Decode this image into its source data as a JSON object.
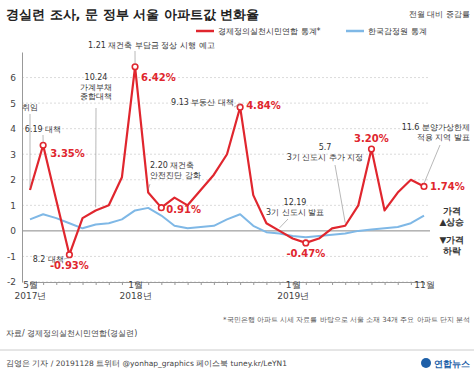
{
  "chart_data": {
    "type": "line",
    "title": "경실련 조사, 문 정부 서울 아파트값 변화율",
    "subtitle": "전월 대비 증감률",
    "categories": [
      "5월\n2017년",
      null,
      null,
      null,
      null,
      null,
      null,
      null,
      "1월\n2018년",
      null,
      null,
      null,
      null,
      null,
      null,
      null,
      null,
      null,
      null,
      null,
      "1월\n2019년",
      null,
      null,
      null,
      null,
      null,
      null,
      null,
      null,
      null,
      "11월"
    ],
    "series": [
      {
        "name": "경제정의실천시민연합 통계*",
        "color": "#e0262e",
        "marker": "circle",
        "data_labels": true,
        "values": [
          1.6,
          3.35,
          1.2,
          -0.93,
          0.5,
          0.8,
          1.0,
          2.1,
          6.42,
          1.5,
          0.91,
          1.3,
          1.0,
          1.6,
          2.2,
          3.0,
          4.84,
          1.4,
          0.3,
          0.0,
          -0.3,
          -0.47,
          -0.3,
          0.1,
          0.2,
          1.0,
          3.2,
          0.8,
          1.5,
          2.0,
          1.74
        ],
        "value_labels": [
          null,
          "3.35%",
          null,
          "-0.93%",
          null,
          null,
          null,
          null,
          "6.42%",
          null,
          "0.91%",
          null,
          null,
          null,
          null,
          null,
          "4.84%",
          null,
          null,
          null,
          null,
          "-0.47%",
          null,
          null,
          null,
          null,
          "3.20%",
          null,
          null,
          null,
          "1.74%"
        ]
      },
      {
        "name": "한국감정원 통계",
        "color": "#7fb8e6",
        "values": [
          0.45,
          0.65,
          0.5,
          0.3,
          0.1,
          0.25,
          0.3,
          0.45,
          0.8,
          0.9,
          0.6,
          0.2,
          0.1,
          0.15,
          0.2,
          0.45,
          0.65,
          0.2,
          -0.05,
          -0.1,
          -0.2,
          -0.25,
          -0.2,
          -0.15,
          -0.1,
          0.0,
          0.05,
          0.1,
          0.15,
          0.3,
          0.6
        ]
      }
    ],
    "ylim": [
      -2,
      7
    ],
    "yticks": [
      -2,
      -1,
      0,
      1,
      2,
      3,
      4,
      5,
      6
    ],
    "grid": true,
    "annotations": [
      "취임",
      "6.19 대책",
      "8.2 대책",
      "10.24\n가계부채\n종합대책",
      "1.21 재건축 부담금 정상 시행 예고",
      "2.20 재건축\n안전진단 강화",
      "9.13 부동산 대책",
      "12.19\n3기 신도시 발표",
      "5.7\n3기 신도시 추가 지정",
      "11.6 분양가상한제\n적용 지역 발표"
    ],
    "direction_labels": [
      "가격\n▲상승",
      "▼가격\n하락"
    ],
    "source": "자료/ 경제정의실천시민연합(경실련)",
    "note": "*국민은행 아파트 시세 자료를 바탕으로 서울 소재 34개 주요 아파트 단지 분석",
    "credit": "김영은 기자 / 20191128 트위터 @yonhap_graphics 페이스북 tuney.kr/LeYN1",
    "logo": "연합뉴스"
  }
}
